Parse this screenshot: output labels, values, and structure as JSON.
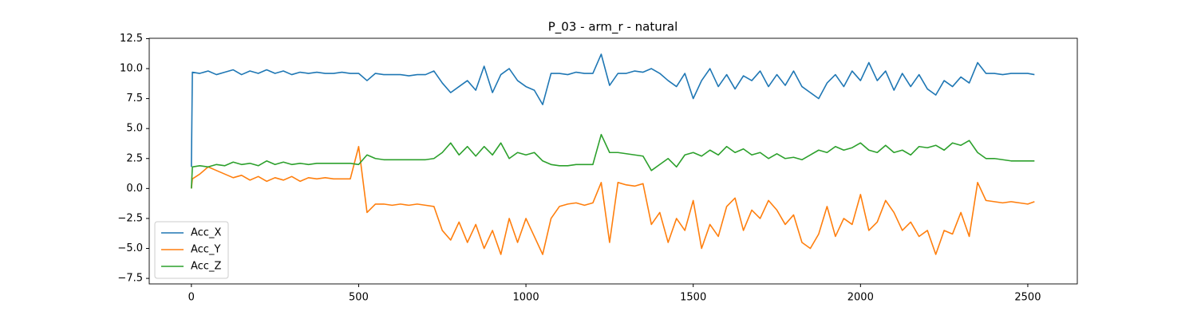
{
  "chart_data": {
    "type": "line",
    "title": "P_03 - arm_r - natural",
    "x": [
      0,
      3,
      25,
      50,
      75,
      100,
      125,
      150,
      175,
      200,
      225,
      250,
      275,
      300,
      325,
      350,
      375,
      400,
      425,
      450,
      475,
      500,
      525,
      550,
      575,
      600,
      625,
      650,
      675,
      700,
      725,
      750,
      775,
      800,
      825,
      850,
      875,
      900,
      925,
      950,
      975,
      1000,
      1025,
      1050,
      1075,
      1100,
      1125,
      1150,
      1175,
      1200,
      1225,
      1250,
      1275,
      1300,
      1325,
      1350,
      1375,
      1400,
      1425,
      1450,
      1475,
      1500,
      1525,
      1550,
      1575,
      1600,
      1625,
      1650,
      1675,
      1700,
      1725,
      1750,
      1775,
      1800,
      1825,
      1850,
      1875,
      1900,
      1925,
      1950,
      1975,
      2000,
      2025,
      2050,
      2075,
      2100,
      2125,
      2150,
      2175,
      2200,
      2225,
      2250,
      2275,
      2300,
      2325,
      2350,
      2375,
      2400,
      2425,
      2450,
      2475,
      2500,
      2520
    ],
    "series": [
      {
        "name": "Acc_X",
        "color": "#1f77b4",
        "values": [
          1.8,
          9.7,
          9.6,
          9.8,
          9.5,
          9.7,
          9.9,
          9.5,
          9.8,
          9.6,
          9.9,
          9.6,
          9.8,
          9.5,
          9.7,
          9.6,
          9.7,
          9.6,
          9.6,
          9.7,
          9.6,
          9.6,
          9.0,
          9.6,
          9.5,
          9.5,
          9.5,
          9.4,
          9.5,
          9.5,
          9.8,
          8.8,
          8.0,
          8.5,
          9.0,
          8.2,
          10.2,
          8.0,
          9.5,
          10.0,
          9.0,
          8.5,
          8.2,
          7.0,
          9.6,
          9.6,
          9.5,
          9.7,
          9.6,
          9.6,
          11.2,
          8.6,
          9.6,
          9.6,
          9.8,
          9.7,
          10.0,
          9.6,
          9.0,
          8.5,
          9.6,
          7.5,
          9.0,
          10.0,
          8.5,
          9.5,
          8.3,
          9.4,
          9.0,
          9.8,
          8.5,
          9.5,
          8.6,
          9.8,
          8.5,
          8.0,
          7.5,
          8.8,
          9.5,
          8.5,
          9.8,
          9.0,
          10.5,
          9.0,
          9.8,
          8.2,
          9.6,
          8.5,
          9.5,
          8.3,
          7.8,
          9.0,
          8.5,
          9.3,
          8.8,
          10.5,
          9.6,
          9.6,
          9.5,
          9.6,
          9.6,
          9.6,
          9.5
        ]
      },
      {
        "name": "Acc_Y",
        "color": "#ff7f0e",
        "values": [
          0,
          0.8,
          1.2,
          1.8,
          1.5,
          1.2,
          0.9,
          1.1,
          0.7,
          1.0,
          0.6,
          0.9,
          0.7,
          1.0,
          0.6,
          0.9,
          0.8,
          0.9,
          0.8,
          0.8,
          0.8,
          3.5,
          -2.0,
          -1.3,
          -1.3,
          -1.4,
          -1.3,
          -1.4,
          -1.3,
          -1.4,
          -1.5,
          -3.5,
          -4.3,
          -2.8,
          -4.5,
          -3.0,
          -5.0,
          -3.5,
          -5.5,
          -2.5,
          -4.5,
          -2.5,
          -4.0,
          -5.5,
          -2.5,
          -1.5,
          -1.3,
          -1.2,
          -1.4,
          -1.2,
          0.5,
          -4.5,
          0.5,
          0.3,
          0.2,
          0.4,
          -3.0,
          -2.0,
          -4.5,
          -2.5,
          -3.5,
          -1.0,
          -5.0,
          -3.0,
          -4.0,
          -1.5,
          -0.8,
          -3.5,
          -1.8,
          -2.5,
          -1.0,
          -1.8,
          -3.0,
          -2.2,
          -4.5,
          -5.0,
          -3.8,
          -1.5,
          -4.0,
          -2.5,
          -3.0,
          -0.5,
          -3.5,
          -2.8,
          -1.0,
          -2.0,
          -3.5,
          -2.8,
          -4.0,
          -3.5,
          -5.5,
          -3.5,
          -3.8,
          -2.0,
          -4.0,
          0.5,
          -1.0,
          -1.1,
          -1.2,
          -1.1,
          -1.2,
          -1.3,
          -1.1
        ]
      },
      {
        "name": "Acc_Z",
        "color": "#2ca02c",
        "values": [
          0,
          1.8,
          1.9,
          1.8,
          2.0,
          1.9,
          2.2,
          2.0,
          2.1,
          1.9,
          2.3,
          2.0,
          2.2,
          2.0,
          2.1,
          2.0,
          2.1,
          2.1,
          2.1,
          2.1,
          2.1,
          2.0,
          2.8,
          2.5,
          2.4,
          2.4,
          2.4,
          2.4,
          2.4,
          2.4,
          2.5,
          3.0,
          3.8,
          2.8,
          3.5,
          2.7,
          3.5,
          2.8,
          3.8,
          2.5,
          3.0,
          2.8,
          3.0,
          2.3,
          2.0,
          1.9,
          1.9,
          2.0,
          2.0,
          2.0,
          4.5,
          3.0,
          3.0,
          2.9,
          2.8,
          2.7,
          1.5,
          2.0,
          2.5,
          1.8,
          2.8,
          3.0,
          2.7,
          3.2,
          2.8,
          3.5,
          3.0,
          3.3,
          2.8,
          3.0,
          2.5,
          2.9,
          2.5,
          2.6,
          2.4,
          2.8,
          3.2,
          3.0,
          3.5,
          3.2,
          3.4,
          3.8,
          3.2,
          3.0,
          3.6,
          3.0,
          3.2,
          2.8,
          3.5,
          3.4,
          3.6,
          3.2,
          3.8,
          3.6,
          4.0,
          3.0,
          2.5,
          2.5,
          2.4,
          2.3,
          2.3,
          2.3,
          2.3
        ]
      }
    ],
    "xlim": [
      -126,
      2648
    ],
    "xticks": [
      0,
      500,
      1000,
      1500,
      2000,
      2500
    ],
    "ylim": [
      -7.96,
      12.53
    ],
    "yticks": [
      {
        "value": -7.5,
        "label": "−7.5"
      },
      {
        "value": -5,
        "label": "−5.0"
      },
      {
        "value": -2.5,
        "label": "−2.5"
      },
      {
        "value": 0,
        "label": "0.0"
      },
      2.5,
      {
        "value": 5,
        "label": "5.0"
      },
      7.5,
      {
        "value": 10,
        "label": "10.0"
      },
      12.5
    ],
    "legend": "lower left"
  }
}
